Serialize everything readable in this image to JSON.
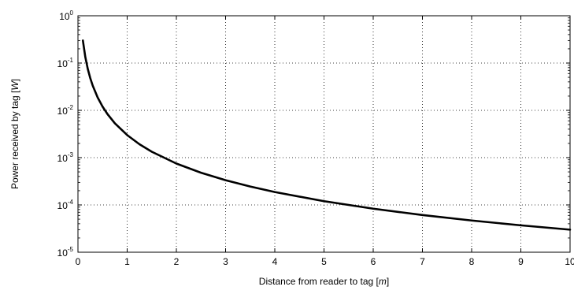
{
  "chart_data": {
    "type": "line",
    "xlabel": "Distance from reader to tag [m]",
    "ylabel": "Power received by tag [W]",
    "xlabel_parts": {
      "before": "Distance from reader to tag [",
      "unit": "m",
      "after": "]"
    },
    "ylabel_parts": {
      "before": "Power received by tag [",
      "unit": "W",
      "after": "]"
    },
    "xlim": [
      0,
      10
    ],
    "ylim": [
      1e-05,
      1
    ],
    "yscale": "log",
    "grid": true,
    "grid_style": "dotted",
    "x_ticks": [
      "0",
      "1",
      "2",
      "3",
      "4",
      "5",
      "6",
      "7",
      "8",
      "9",
      "10"
    ],
    "y_ticks": [
      {
        "base": "10",
        "exp": "0",
        "value": 1
      },
      {
        "base": "10",
        "exp": "-1",
        "value": 0.1
      },
      {
        "base": "10",
        "exp": "-2",
        "value": 0.01
      },
      {
        "base": "10",
        "exp": "-3",
        "value": 0.001
      },
      {
        "base": "10",
        "exp": "-4",
        "value": 0.0001
      },
      {
        "base": "10",
        "exp": "-5",
        "value": 1e-05
      }
    ],
    "series": [
      {
        "line_color": "#000000",
        "x": [
          0.1,
          0.15,
          0.2,
          0.25,
          0.3,
          0.4,
          0.5,
          0.6,
          0.75,
          1,
          1.25,
          1.5,
          2,
          2.5,
          3,
          3.5,
          4,
          5,
          6,
          7,
          8,
          9,
          10
        ],
        "y": [
          0.3,
          0.1333,
          0.075,
          0.048,
          0.03333,
          0.01875,
          0.012,
          0.008333,
          0.005333,
          0.003,
          0.00192,
          0.001333,
          0.00075,
          0.00048,
          0.0003333,
          0.0002449,
          0.0001875,
          0.00012,
          8.333e-05,
          6.122e-05,
          4.688e-05,
          3.704e-05,
          3e-05
        ]
      }
    ]
  }
}
